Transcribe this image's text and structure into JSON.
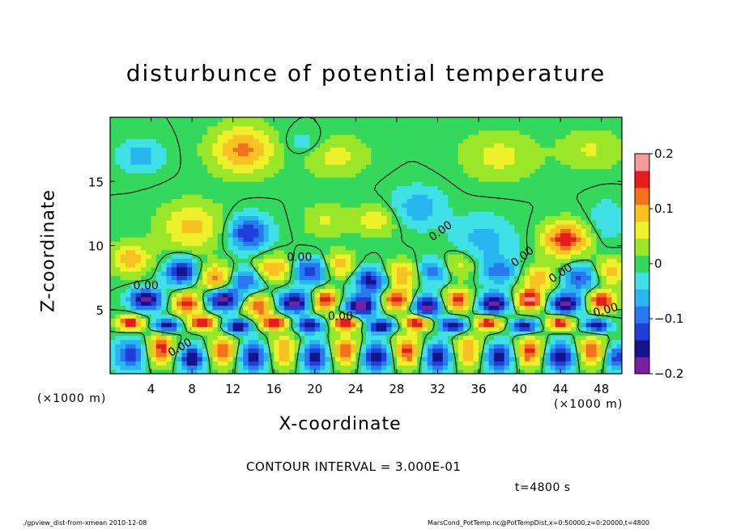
{
  "chart_data": {
    "type": "heatmap",
    "title": "disturbunce of potential temperature",
    "xlabel": "X-coordinate",
    "ylabel": "Z-coordinate",
    "x_unit": "(×1000 m)",
    "x_ticks": [
      4,
      8,
      12,
      16,
      20,
      24,
      28,
      32,
      36,
      40,
      44,
      48
    ],
    "y_ticks": [
      5,
      10,
      15
    ],
    "xlim": [
      0,
      50
    ],
    "ylim": [
      0,
      20
    ],
    "colorbar": {
      "ticks": [
        "0.2",
        "0.1",
        "0",
        "−0.1",
        "−0.2"
      ],
      "range": [
        -0.2,
        0.2
      ]
    },
    "contour_labels": [
      "0.00",
      "0.00",
      "0.00",
      "0.00",
      "0.00",
      "0.00",
      "0.00",
      "0.00"
    ],
    "contour_interval": "CONTOUR INTERVAL = 3.000E-01",
    "time": "t=4800 s",
    "blobs": [
      {
        "x": 13.0,
        "z": 17.5,
        "v": 0.12,
        "rx": 3.0,
        "rz": 1.8
      },
      {
        "x": 22.0,
        "z": 17.0,
        "v": 0.06,
        "rx": 3.0,
        "rz": 1.5
      },
      {
        "x": 38.0,
        "z": 17.0,
        "v": 0.06,
        "rx": 3.5,
        "rz": 1.8
      },
      {
        "x": 47.0,
        "z": 17.5,
        "v": 0.05,
        "rx": 3.0,
        "rz": 1.5
      },
      {
        "x": 3.0,
        "z": 17.0,
        "v": -0.07,
        "rx": 2.0,
        "rz": 1.2
      },
      {
        "x": 19.0,
        "z": 18.0,
        "v": -0.04,
        "rx": 2.0,
        "rz": 1.0
      },
      {
        "x": 8.0,
        "z": 11.5,
        "v": 0.09,
        "rx": 3.0,
        "rz": 1.8
      },
      {
        "x": 13.5,
        "z": 11.0,
        "v": -0.14,
        "rx": 2.0,
        "rz": 1.3
      },
      {
        "x": 21.0,
        "z": 12.0,
        "v": 0.05,
        "rx": 2.0,
        "rz": 1.3
      },
      {
        "x": 26.0,
        "z": 12.0,
        "v": 0.07,
        "rx": 2.0,
        "rz": 1.2
      },
      {
        "x": 30.0,
        "z": 13.0,
        "v": -0.07,
        "rx": 2.5,
        "rz": 1.5
      },
      {
        "x": 36.5,
        "z": 10.5,
        "v": -0.06,
        "rx": 3.0,
        "rz": 1.8
      },
      {
        "x": 44.5,
        "z": 10.5,
        "v": 0.16,
        "rx": 2.2,
        "rz": 1.3
      },
      {
        "x": 48.5,
        "z": 12.0,
        "v": -0.05,
        "rx": 1.5,
        "rz": 1.5
      },
      {
        "x": 2.0,
        "z": 9.0,
        "v": 0.1,
        "rx": 2.0,
        "rz": 1.2
      },
      {
        "x": 7.0,
        "z": 8.0,
        "v": -0.17,
        "rx": 1.6,
        "rz": 1.0
      },
      {
        "x": 10.5,
        "z": 7.5,
        "v": 0.14,
        "rx": 1.8,
        "rz": 1.0
      },
      {
        "x": 13.0,
        "z": 7.3,
        "v": -0.13,
        "rx": 1.8,
        "rz": 1.0
      },
      {
        "x": 16.0,
        "z": 8.2,
        "v": 0.12,
        "rx": 1.8,
        "rz": 1.0
      },
      {
        "x": 19.5,
        "z": 8.0,
        "v": -0.15,
        "rx": 1.6,
        "rz": 1.0
      },
      {
        "x": 22.5,
        "z": 8.5,
        "v": 0.1,
        "rx": 1.5,
        "rz": 1.0
      },
      {
        "x": 25.5,
        "z": 7.3,
        "v": -0.16,
        "rx": 1.6,
        "rz": 1.0
      },
      {
        "x": 28.5,
        "z": 7.8,
        "v": 0.12,
        "rx": 1.6,
        "rz": 1.0
      },
      {
        "x": 31.5,
        "z": 8.0,
        "v": -0.1,
        "rx": 1.6,
        "rz": 1.0
      },
      {
        "x": 34.0,
        "z": 8.5,
        "v": 0.07,
        "rx": 1.6,
        "rz": 1.0
      },
      {
        "x": 38.0,
        "z": 8.0,
        "v": -0.1,
        "rx": 1.6,
        "rz": 1.0
      },
      {
        "x": 42.0,
        "z": 7.5,
        "v": 0.1,
        "rx": 1.6,
        "rz": 1.0
      },
      {
        "x": 46.0,
        "z": 7.5,
        "v": -0.12,
        "rx": 1.6,
        "rz": 1.0
      },
      {
        "x": 49.0,
        "z": 8.0,
        "v": 0.1,
        "rx": 1.5,
        "rz": 1.0
      },
      {
        "x": 3.5,
        "z": 5.8,
        "v": -0.2,
        "rx": 1.5,
        "rz": 0.8
      },
      {
        "x": 7.5,
        "z": 5.5,
        "v": 0.18,
        "rx": 1.3,
        "rz": 0.8
      },
      {
        "x": 11.0,
        "z": 5.8,
        "v": -0.2,
        "rx": 1.5,
        "rz": 0.8
      },
      {
        "x": 14.5,
        "z": 5.3,
        "v": 0.16,
        "rx": 1.3,
        "rz": 0.8
      },
      {
        "x": 18.0,
        "z": 5.6,
        "v": -0.2,
        "rx": 1.5,
        "rz": 0.8
      },
      {
        "x": 21.0,
        "z": 5.8,
        "v": 0.18,
        "rx": 1.2,
        "rz": 0.8
      },
      {
        "x": 24.5,
        "z": 5.3,
        "v": -0.2,
        "rx": 1.5,
        "rz": 0.8
      },
      {
        "x": 28.0,
        "z": 5.8,
        "v": 0.18,
        "rx": 1.3,
        "rz": 0.8
      },
      {
        "x": 31.0,
        "z": 5.3,
        "v": -0.2,
        "rx": 1.3,
        "rz": 0.8
      },
      {
        "x": 34.0,
        "z": 5.8,
        "v": 0.16,
        "rx": 1.3,
        "rz": 0.8
      },
      {
        "x": 37.5,
        "z": 5.5,
        "v": -0.2,
        "rx": 1.5,
        "rz": 0.8
      },
      {
        "x": 41.0,
        "z": 5.8,
        "v": 0.2,
        "rx": 1.3,
        "rz": 0.8
      },
      {
        "x": 44.5,
        "z": 5.5,
        "v": -0.2,
        "rx": 1.5,
        "rz": 0.8
      },
      {
        "x": 48.0,
        "z": 5.7,
        "v": 0.18,
        "rx": 1.3,
        "rz": 0.8
      },
      {
        "x": 2.0,
        "z": 4.0,
        "v": 0.2,
        "rx": 1.2,
        "rz": 0.5
      },
      {
        "x": 5.5,
        "z": 3.8,
        "v": -0.2,
        "rx": 1.2,
        "rz": 0.5
      },
      {
        "x": 9.0,
        "z": 4.0,
        "v": 0.2,
        "rx": 1.2,
        "rz": 0.5
      },
      {
        "x": 12.5,
        "z": 3.7,
        "v": -0.2,
        "rx": 1.2,
        "rz": 0.5
      },
      {
        "x": 16.0,
        "z": 4.0,
        "v": 0.2,
        "rx": 1.2,
        "rz": 0.5
      },
      {
        "x": 19.5,
        "z": 3.8,
        "v": -0.2,
        "rx": 1.2,
        "rz": 0.5
      },
      {
        "x": 23.0,
        "z": 4.0,
        "v": 0.2,
        "rx": 1.2,
        "rz": 0.5
      },
      {
        "x": 26.5,
        "z": 3.7,
        "v": -0.2,
        "rx": 1.2,
        "rz": 0.5
      },
      {
        "x": 30.0,
        "z": 4.0,
        "v": 0.2,
        "rx": 1.2,
        "rz": 0.5
      },
      {
        "x": 33.5,
        "z": 3.8,
        "v": -0.2,
        "rx": 1.2,
        "rz": 0.5
      },
      {
        "x": 37.0,
        "z": 4.0,
        "v": 0.2,
        "rx": 1.2,
        "rz": 0.5
      },
      {
        "x": 40.5,
        "z": 3.7,
        "v": -0.2,
        "rx": 1.2,
        "rz": 0.5
      },
      {
        "x": 44.0,
        "z": 4.0,
        "v": 0.2,
        "rx": 1.2,
        "rz": 0.5
      },
      {
        "x": 47.5,
        "z": 3.8,
        "v": -0.2,
        "rx": 1.2,
        "rz": 0.5
      },
      {
        "x": 2.0,
        "z": 1.5,
        "v": -0.14,
        "rx": 1.4,
        "rz": 1.2
      },
      {
        "x": 5.0,
        "z": 2.0,
        "v": 0.16,
        "rx": 1.2,
        "rz": 1.2
      },
      {
        "x": 8.0,
        "z": 1.2,
        "v": -0.18,
        "rx": 1.2,
        "rz": 1.0
      },
      {
        "x": 11.0,
        "z": 1.8,
        "v": 0.14,
        "rx": 1.2,
        "rz": 1.2
      },
      {
        "x": 14.0,
        "z": 1.3,
        "v": -0.16,
        "rx": 1.3,
        "rz": 1.1
      },
      {
        "x": 17.0,
        "z": 1.8,
        "v": 0.12,
        "rx": 1.2,
        "rz": 1.2
      },
      {
        "x": 20.0,
        "z": 1.3,
        "v": -0.16,
        "rx": 1.3,
        "rz": 1.1
      },
      {
        "x": 23.0,
        "z": 1.8,
        "v": 0.14,
        "rx": 1.2,
        "rz": 1.2
      },
      {
        "x": 26.0,
        "z": 1.3,
        "v": -0.18,
        "rx": 1.3,
        "rz": 1.1
      },
      {
        "x": 29.0,
        "z": 1.8,
        "v": 0.16,
        "rx": 1.2,
        "rz": 1.2
      },
      {
        "x": 32.0,
        "z": 1.3,
        "v": -0.16,
        "rx": 1.3,
        "rz": 1.1
      },
      {
        "x": 35.0,
        "z": 1.8,
        "v": 0.12,
        "rx": 1.2,
        "rz": 1.2
      },
      {
        "x": 38.0,
        "z": 1.3,
        "v": -0.16,
        "rx": 1.3,
        "rz": 1.1
      },
      {
        "x": 41.0,
        "z": 1.8,
        "v": 0.16,
        "rx": 1.2,
        "rz": 1.2
      },
      {
        "x": 44.0,
        "z": 1.3,
        "v": -0.18,
        "rx": 1.3,
        "rz": 1.1
      },
      {
        "x": 47.0,
        "z": 1.8,
        "v": 0.14,
        "rx": 1.2,
        "rz": 1.2
      },
      {
        "x": 49.5,
        "z": 1.2,
        "v": -0.14,
        "rx": 1.0,
        "rz": 1.0
      }
    ]
  },
  "footer": {
    "left": "./gpview_dist-from-xmean  2010-12-08",
    "right": "MarsCond_PotTemp.nc@PotTempDist,x=0:50000,z=0:20000,t=4800"
  }
}
